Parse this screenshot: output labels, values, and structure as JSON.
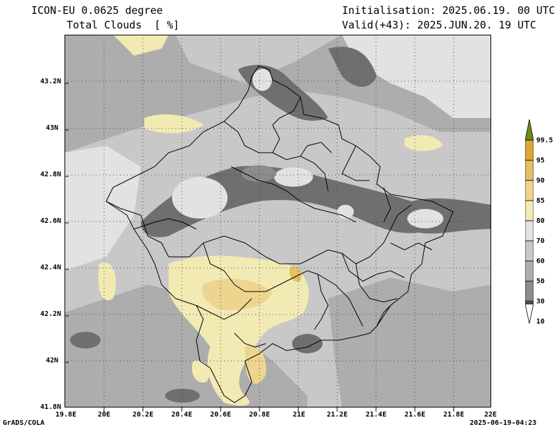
{
  "header": {
    "model": "ICON-EU 0.0625 degree",
    "field": "Total Clouds  [ %]",
    "init": "Initialisation: 2025.06.19. 00 UTC",
    "valid": "Valid(+43): 2025.JUN.20. 19 UTC"
  },
  "footer": {
    "credit": "GrADS/COLA",
    "timestamp": "2025-06-19-04:23"
  },
  "axes": {
    "x_ticks": [
      "19.8E",
      "20E",
      "20.2E",
      "20.4E",
      "20.6E",
      "20.8E",
      "21E",
      "21.2E",
      "21.4E",
      "21.6E",
      "21.8E",
      "22E"
    ],
    "y_ticks": [
      "43.2N",
      "43N",
      "42.8N",
      "42.6N",
      "42.4N",
      "42.2N",
      "42N",
      "41.8N"
    ]
  },
  "colorbar": {
    "labels": [
      "99.5",
      "95",
      "90",
      "85",
      "80",
      "70",
      "60",
      "50",
      "30",
      "10"
    ],
    "colors": {
      "c99": "#6d8a14",
      "c95": "#dca834",
      "c90": "#e6bf63",
      "c85": "#edd58f",
      "c80": "#f2eab3",
      "c70": "#e2e2e2",
      "c60": "#c8c8c8",
      "c50": "#adadad",
      "c30": "#8c8c8c",
      "c10": "#585858",
      "c0": "#ffffff"
    }
  }
}
